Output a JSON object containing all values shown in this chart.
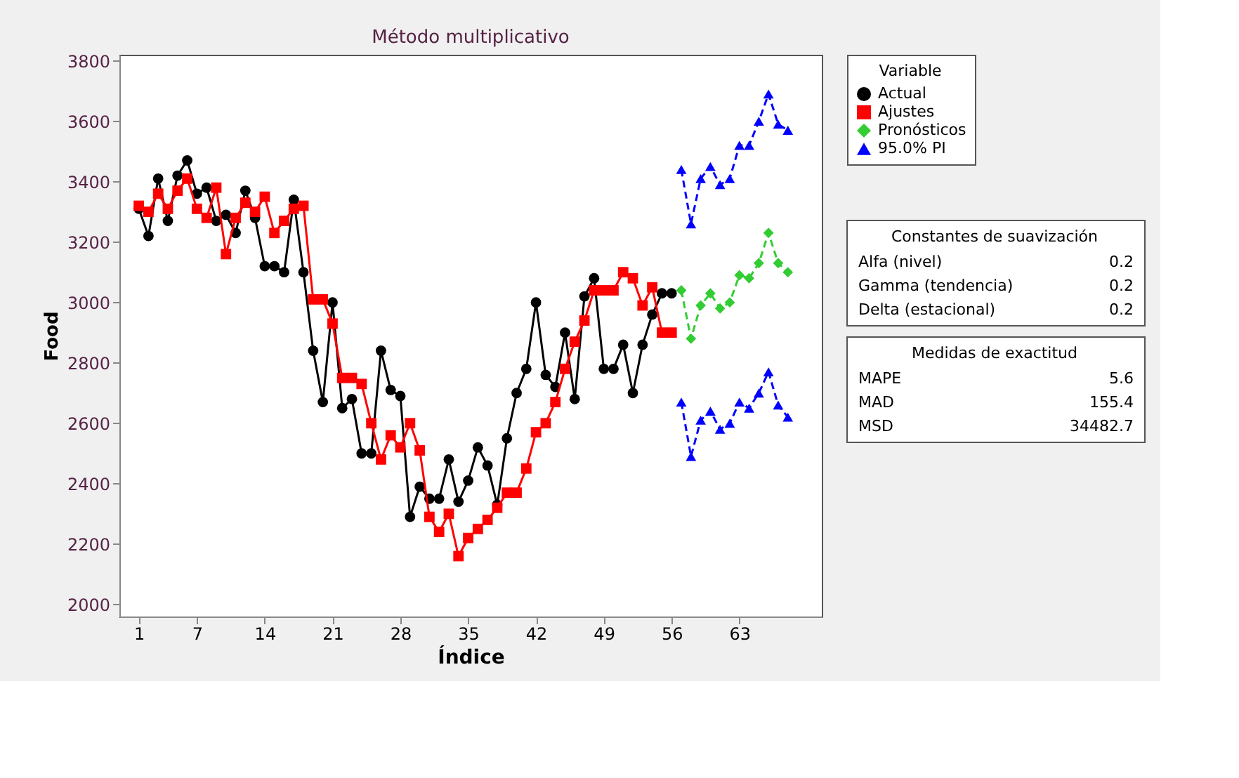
{
  "chart_data": {
    "type": "line",
    "title": "Método multiplicativo",
    "xlabel": "Índice",
    "ylabel": "Food",
    "legend_title": "Variable",
    "legend": "right",
    "grid": false,
    "xlim": [
      -1,
      71.5
    ],
    "xticks": [
      1,
      7,
      14,
      21,
      28,
      35,
      42,
      49,
      56,
      63
    ],
    "ylim": [
      1960,
      3820
    ],
    "yticks": [
      2000,
      2200,
      2400,
      2600,
      2800,
      3000,
      3200,
      3400,
      3600,
      3800
    ],
    "series": [
      {
        "name": "Actual",
        "color": "#000000",
        "marker": "circle",
        "line_style": "solid",
        "x": [
          1,
          2,
          3,
          4,
          5,
          6,
          7,
          8,
          9,
          10,
          11,
          12,
          13,
          14,
          15,
          16,
          17,
          18,
          19,
          20,
          21,
          22,
          23,
          24,
          25,
          26,
          27,
          28,
          29,
          30,
          31,
          32,
          33,
          34,
          35,
          36,
          37,
          38,
          39,
          40,
          41,
          42,
          43,
          44,
          45,
          46,
          47,
          48,
          49,
          50,
          51,
          52,
          53,
          54,
          55,
          56
        ],
        "values": [
          3310,
          3220,
          3410,
          3270,
          3420,
          3470,
          3360,
          3380,
          3270,
          3290,
          3230,
          3370,
          3280,
          3120,
          3120,
          3100,
          3340,
          3100,
          2840,
          2670,
          3000,
          2650,
          2680,
          2500,
          2500,
          2840,
          2710,
          2690,
          2290,
          2390,
          2350,
          2350,
          2480,
          2340,
          2410,
          2520,
          2460,
          2330,
          2550,
          2700,
          2780,
          3000,
          2760,
          2720,
          2900,
          2680,
          3020,
          3080,
          2780,
          2780,
          2860,
          2700,
          2860,
          2960,
          3030,
          3030
        ]
      },
      {
        "name": "Ajustes",
        "color": "#ff0000",
        "marker": "square",
        "line_style": "solid",
        "x": [
          1,
          2,
          3,
          4,
          5,
          6,
          7,
          8,
          9,
          10,
          11,
          12,
          13,
          14,
          15,
          16,
          17,
          18,
          19,
          20,
          21,
          22,
          23,
          24,
          25,
          26,
          27,
          28,
          29,
          30,
          31,
          32,
          33,
          34,
          35,
          36,
          37,
          38,
          39,
          40,
          41,
          42,
          43,
          44,
          45,
          46,
          47,
          48,
          49,
          50,
          51,
          52,
          53,
          54,
          55,
          56
        ],
        "values": [
          3320,
          3300,
          3360,
          3310,
          3370,
          3410,
          3310,
          3280,
          3380,
          3160,
          3280,
          3330,
          3300,
          3350,
          3230,
          3270,
          3310,
          3320,
          3010,
          3010,
          2930,
          2750,
          2750,
          2730,
          2600,
          2480,
          2560,
          2520,
          2600,
          2510,
          2290,
          2240,
          2300,
          2160,
          2220,
          2250,
          2280,
          2320,
          2370,
          2370,
          2450,
          2570,
          2600,
          2670,
          2780,
          2870,
          2940,
          3040,
          3040,
          3040,
          3100,
          3080,
          2990,
          3050,
          2900,
          2900
        ]
      },
      {
        "name": "Pronósticos",
        "color": "#33cc33",
        "marker": "diamond",
        "line_style": "dashed",
        "x": [
          57,
          58,
          59,
          60,
          61,
          62,
          63,
          64,
          65,
          66,
          67,
          68
        ],
        "values": [
          3040,
          2880,
          2990,
          3030,
          2980,
          3000,
          3090,
          3080,
          3130,
          3230,
          3130,
          3100
        ]
      },
      {
        "name": "95.0% PI",
        "color": "#0000ff",
        "marker": "triangle",
        "line_style": "dashed",
        "x": [
          57,
          58,
          59,
          60,
          61,
          62,
          63,
          64,
          65,
          66,
          67,
          68
        ],
        "values": [
          3440,
          3260,
          3410,
          3450,
          3390,
          3410,
          3520,
          3520,
          3600,
          3690,
          3590,
          3570
        ]
      },
      {
        "color": "#0000ff",
        "marker": "triangle",
        "line_style": "dashed",
        "x": [
          57,
          58,
          59,
          60,
          61,
          62,
          63,
          64,
          65,
          66,
          67,
          68
        ],
        "values": [
          2670,
          2490,
          2610,
          2640,
          2580,
          2600,
          2670,
          2650,
          2700,
          2770,
          2660,
          2620
        ]
      }
    ],
    "annotations": [
      "Constantes de suavización",
      "Alfa (nivel)",
      "0.2",
      "Gamma (tendencia)",
      "0.2",
      "Delta (estacional)",
      "0.2",
      "Medidas de exactitud",
      "MAPE",
      "5.6",
      "MAD",
      "155.4",
      "MSD",
      "34482.7"
    ]
  }
}
